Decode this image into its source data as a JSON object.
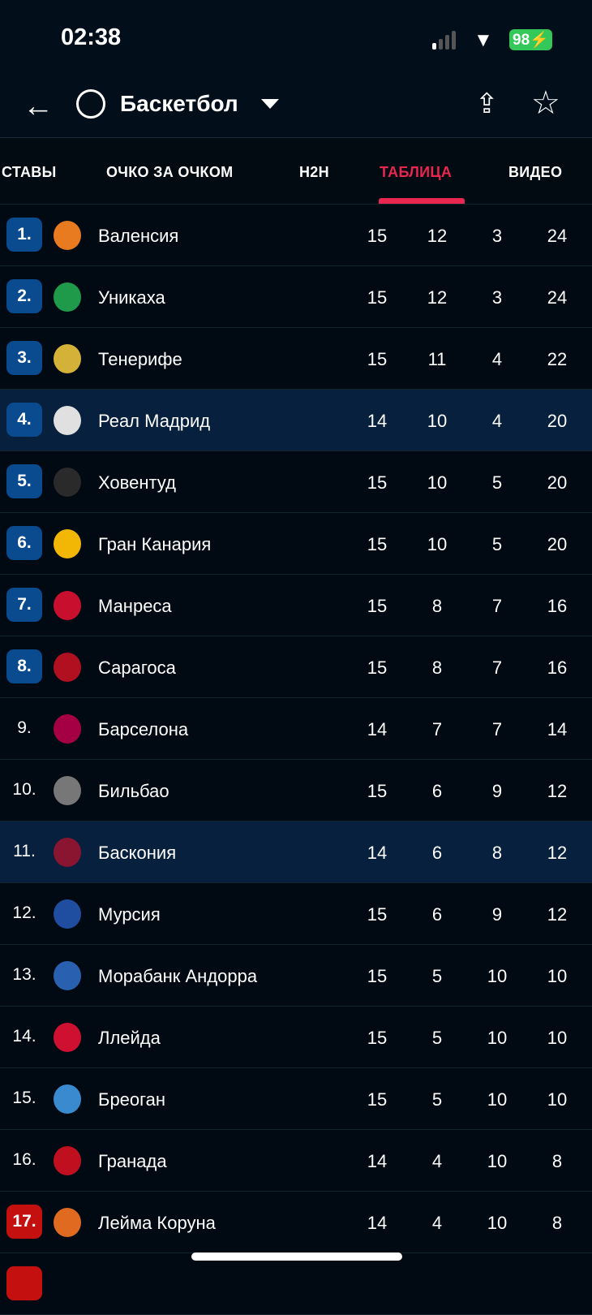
{
  "status": {
    "time": "02:38",
    "battery": "98"
  },
  "header": {
    "title": "Баскетбол"
  },
  "tabs": [
    {
      "label": "СТАВЫ"
    },
    {
      "label": "ОЧКО ЗА ОЧКОМ"
    },
    {
      "label": "H2H"
    },
    {
      "label": "ТАБЛИЦА",
      "active": true
    },
    {
      "label": "ВИДЕО"
    }
  ],
  "colors": {
    "accent": "#e8264f",
    "badge_blue": "#0a4a8f",
    "badge_red": "#c4100f",
    "highlight": "#06203e"
  },
  "rows": [
    {
      "pos": "1.",
      "team": "Валенсия",
      "p": "15",
      "w": "12",
      "l": "3",
      "pts": "24",
      "badge": "blue",
      "logo": "#e87a20"
    },
    {
      "pos": "2.",
      "team": "Уникаха",
      "p": "15",
      "w": "12",
      "l": "3",
      "pts": "24",
      "badge": "blue",
      "logo": "#1f9a4a"
    },
    {
      "pos": "3.",
      "team": "Тенерифе",
      "p": "15",
      "w": "11",
      "l": "4",
      "pts": "22",
      "badge": "blue",
      "logo": "#d4b238"
    },
    {
      "pos": "4.",
      "team": "Реал Мадрид",
      "p": "14",
      "w": "10",
      "l": "4",
      "pts": "20",
      "badge": "blue",
      "logo": "#e0e0e0",
      "hl": true
    },
    {
      "pos": "5.",
      "team": "Ховентуд",
      "p": "15",
      "w": "10",
      "l": "5",
      "pts": "20",
      "badge": "blue",
      "logo": "#2a2a2a"
    },
    {
      "pos": "6.",
      "team": "Гран Канария",
      "p": "15",
      "w": "10",
      "l": "5",
      "pts": "20",
      "badge": "blue",
      "logo": "#f2b705"
    },
    {
      "pos": "7.",
      "team": "Манреса",
      "p": "15",
      "w": "8",
      "l": "7",
      "pts": "16",
      "badge": "blue",
      "logo": "#c8102e"
    },
    {
      "pos": "8.",
      "team": "Сарагоса",
      "p": "15",
      "w": "8",
      "l": "7",
      "pts": "16",
      "badge": "blue",
      "logo": "#b01020"
    },
    {
      "pos": "9.",
      "team": "Барселона",
      "p": "14",
      "w": "7",
      "l": "7",
      "pts": "14",
      "badge": "",
      "logo": "#a50044"
    },
    {
      "pos": "10.",
      "team": "Бильбао",
      "p": "15",
      "w": "6",
      "l": "9",
      "pts": "12",
      "badge": "",
      "logo": "#777"
    },
    {
      "pos": "11.",
      "team": "Баскония",
      "p": "14",
      "w": "6",
      "l": "8",
      "pts": "12",
      "badge": "",
      "logo": "#8a1530",
      "hl": true
    },
    {
      "pos": "12.",
      "team": "Мурсия",
      "p": "15",
      "w": "6",
      "l": "9",
      "pts": "12",
      "badge": "",
      "logo": "#1f4ea0"
    },
    {
      "pos": "13.",
      "team": "Морабанк Андорра",
      "p": "15",
      "w": "5",
      "l": "10",
      "pts": "10",
      "badge": "",
      "logo": "#2a60b0"
    },
    {
      "pos": "14.",
      "team": "Ллейда",
      "p": "15",
      "w": "5",
      "l": "10",
      "pts": "10",
      "badge": "",
      "logo": "#d01030"
    },
    {
      "pos": "15.",
      "team": "Бреоган",
      "p": "15",
      "w": "5",
      "l": "10",
      "pts": "10",
      "badge": "",
      "logo": "#3a8ad0"
    },
    {
      "pos": "16.",
      "team": "Гранада",
      "p": "14",
      "w": "4",
      "l": "10",
      "pts": "8",
      "badge": "",
      "logo": "#c01020"
    },
    {
      "pos": "17.",
      "team": "Лейма Коруна",
      "p": "14",
      "w": "4",
      "l": "10",
      "pts": "8",
      "badge": "red",
      "logo": "#e06a20"
    }
  ]
}
